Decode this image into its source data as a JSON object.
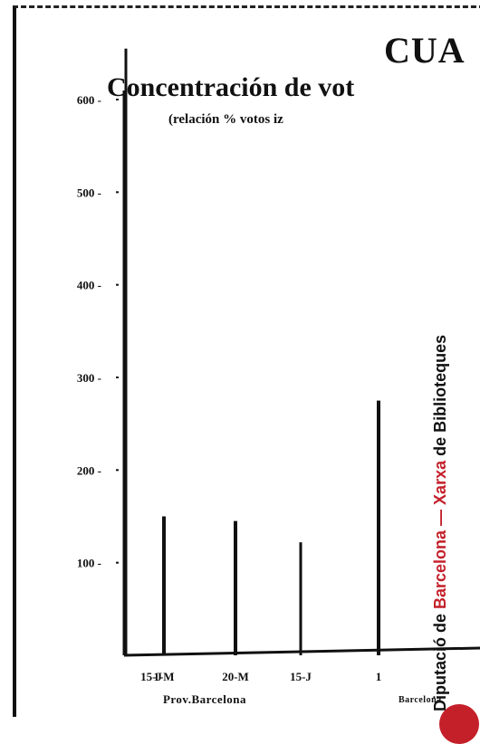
{
  "chart_data": {
    "type": "bar",
    "title": "CUA",
    "subtitle": "Concentración de vot",
    "note": "(relación % votos iz",
    "categories": [
      "15-J",
      "1-M",
      "20-M",
      "15-J",
      "1"
    ],
    "group_labels": [
      "Prov.Barcelona",
      "Barcelona"
    ],
    "values": [
      655,
      150,
      145,
      122,
      275
    ],
    "yticks": [
      100,
      200,
      300,
      400,
      500,
      600
    ],
    "ylim": [
      0,
      660
    ],
    "legend": "none",
    "grid": false
  },
  "watermark": {
    "prefix": "Diputació de ",
    "red_part": "Barcelona — Xarxa",
    "suffix": " de Biblioteques"
  },
  "colors": {
    "ink": "#111111",
    "seal": "#c4202a"
  }
}
